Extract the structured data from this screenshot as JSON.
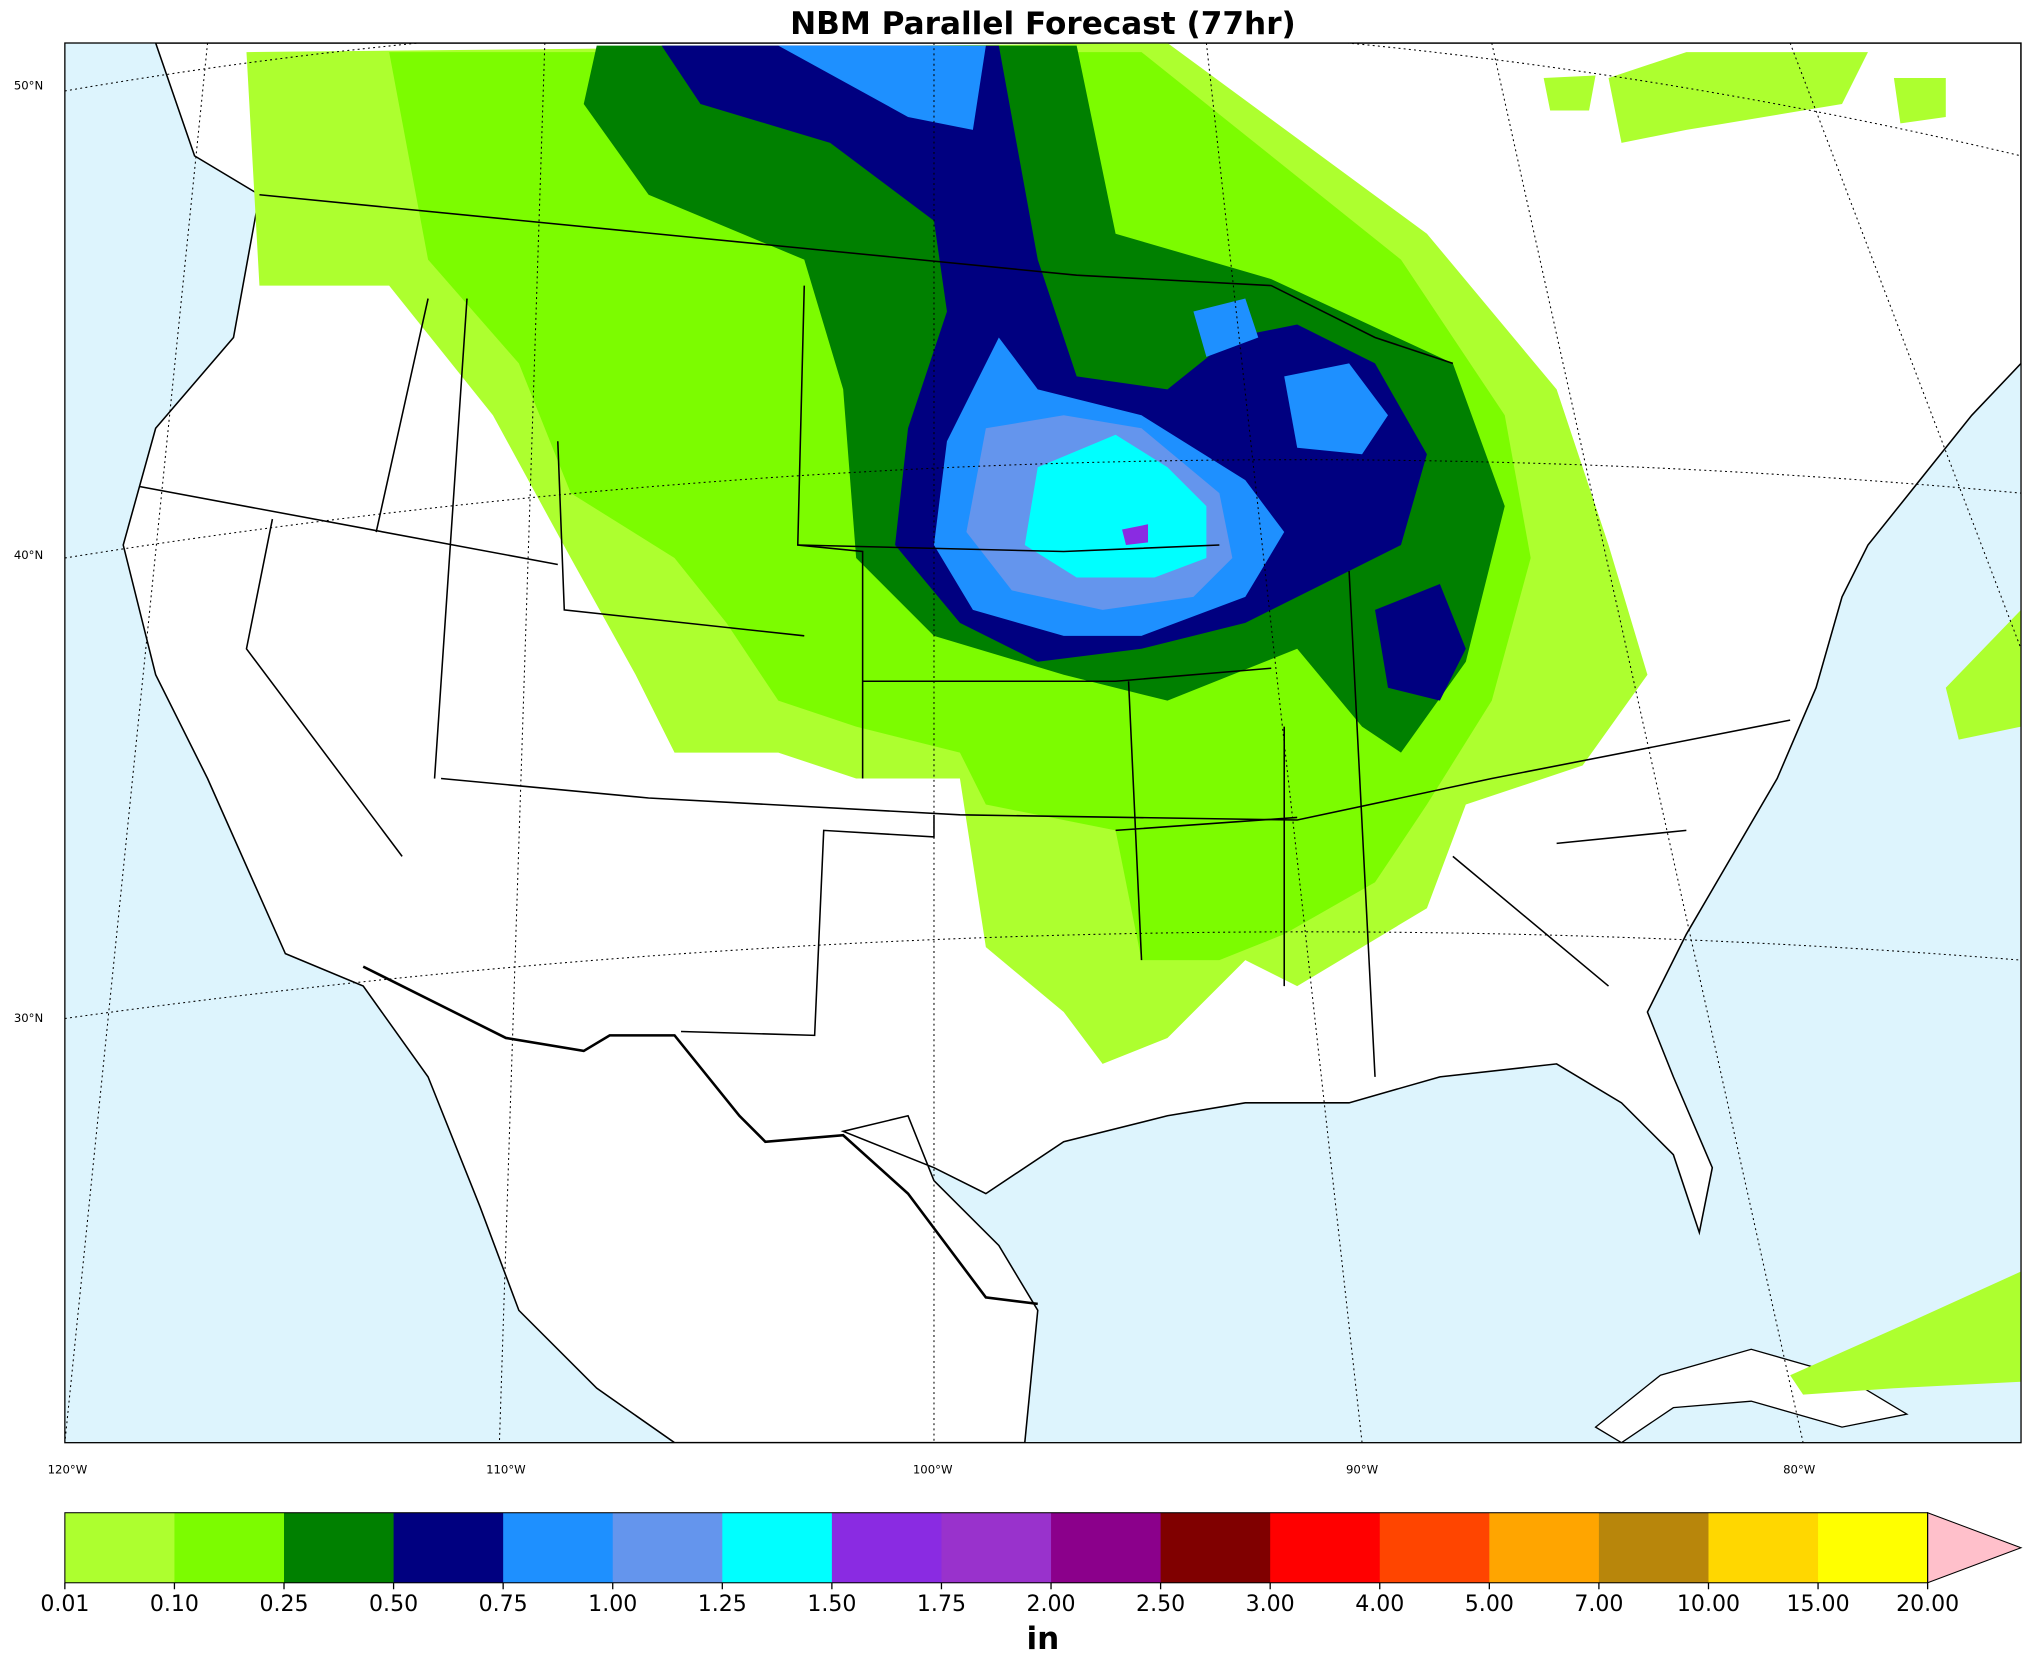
{
  "title": "NBM Parallel Forecast (77hr)",
  "lat_labels": [
    "50°N",
    "40°N",
    "30°N"
  ],
  "lon_labels": [
    "120°W",
    "110°W",
    "100°W",
    "90°W",
    "80°W"
  ],
  "colorbar": {
    "ticks": [
      "0.01",
      "0.10",
      "0.25",
      "0.50",
      "0.75",
      "1.00",
      "1.25",
      "1.50",
      "1.75",
      "2.00",
      "2.50",
      "3.00",
      "4.00",
      "5.00",
      "7.00",
      "10.00",
      "15.00",
      "20.00"
    ],
    "colors": [
      "#adff2f",
      "#7cfc00",
      "#008000",
      "#000080",
      "#1e90ff",
      "#6495ed",
      "#00ffff",
      "#8a2be2",
      "#9932cc",
      "#8b008b",
      "#800000",
      "#ff0000",
      "#ff4500",
      "#ffa500",
      "#b8860b",
      "#ffd700",
      "#ffff00"
    ],
    "extend_color": "#ffc0cb",
    "unit": "in"
  }
}
